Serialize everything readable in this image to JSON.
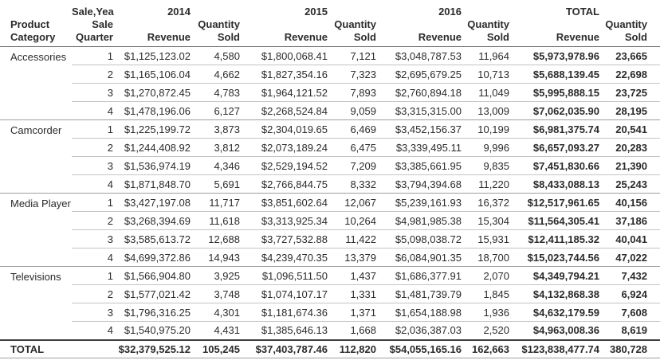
{
  "colors": {
    "text": "#2b2b2b",
    "background": "#ffffff",
    "header_line": "#757575",
    "row_line": "#c4c4c4",
    "group_line": "#9e9e9e",
    "total_line": "#3f3f3f"
  },
  "chart_data": {
    "type": "table",
    "row_dimension_label": [
      "Product",
      "Category"
    ],
    "column_dimension_label": [
      "Sale,Year",
      "Sale",
      "Quarter"
    ],
    "year_groups": [
      "2014",
      "2015",
      "2016",
      "TOTAL"
    ],
    "measure_labels": {
      "revenue": "Revenue",
      "quantity": [
        "Quantity",
        "Sold"
      ]
    },
    "header": {
      "cells": [
        {
          "lines": [
            "",
            "Product",
            "Category"
          ]
        },
        {
          "lines": [
            "Sale,Year",
            "Sale",
            "Quarter"
          ]
        },
        {
          "lines": [
            "2014",
            "",
            "Revenue"
          ]
        },
        {
          "lines": [
            "",
            "Quantity",
            "Sold"
          ]
        },
        {
          "lines": [
            "2015",
            "",
            "Revenue"
          ]
        },
        {
          "lines": [
            "",
            "Quantity",
            "Sold"
          ]
        },
        {
          "lines": [
            "2016",
            "",
            "Revenue"
          ]
        },
        {
          "lines": [
            "",
            "Quantity",
            "Sold"
          ]
        },
        {
          "lines": [
            "TOTAL",
            "",
            "Revenue"
          ]
        },
        {
          "lines": [
            "",
            "Quantity",
            "Sold"
          ]
        }
      ]
    },
    "groups": [
      {
        "category": "Accessories",
        "rows": [
          [
            "1",
            "$1,125,123.02",
            "4,580",
            "$1,800,068.41",
            "7,121",
            "$3,048,787.53",
            "11,964",
            "$5,973,978.96",
            "23,665"
          ],
          [
            "2",
            "$1,165,106.04",
            "4,662",
            "$1,827,354.16",
            "7,323",
            "$2,695,679.25",
            "10,713",
            "$5,688,139.45",
            "22,698"
          ],
          [
            "3",
            "$1,270,872.45",
            "4,783",
            "$1,964,121.52",
            "7,893",
            "$2,760,894.18",
            "11,049",
            "$5,995,888.15",
            "23,725"
          ],
          [
            "4",
            "$1,478,196.06",
            "6,127",
            "$2,268,524.84",
            "9,059",
            "$3,315,315.00",
            "13,009",
            "$7,062,035.90",
            "28,195"
          ]
        ]
      },
      {
        "category": "Camcorder",
        "rows": [
          [
            "1",
            "$1,225,199.72",
            "3,873",
            "$2,304,019.65",
            "6,469",
            "$3,452,156.37",
            "10,199",
            "$6,981,375.74",
            "20,541"
          ],
          [
            "2",
            "$1,244,408.92",
            "3,812",
            "$2,073,189.24",
            "6,475",
            "$3,339,495.11",
            "9,996",
            "$6,657,093.27",
            "20,283"
          ],
          [
            "3",
            "$1,536,974.19",
            "4,346",
            "$2,529,194.52",
            "7,209",
            "$3,385,661.95",
            "9,835",
            "$7,451,830.66",
            "21,390"
          ],
          [
            "4",
            "$1,871,848.70",
            "5,691",
            "$2,766,844.75",
            "8,332",
            "$3,794,394.68",
            "11,220",
            "$8,433,088.13",
            "25,243"
          ]
        ]
      },
      {
        "category": "Media Player",
        "rows": [
          [
            "1",
            "$3,427,197.08",
            "11,717",
            "$3,851,602.64",
            "12,067",
            "$5,239,161.93",
            "16,372",
            "$12,517,961.65",
            "40,156"
          ],
          [
            "2",
            "$3,268,394.69",
            "11,618",
            "$3,313,925.34",
            "10,264",
            "$4,981,985.38",
            "15,304",
            "$11,564,305.41",
            "37,186"
          ],
          [
            "3",
            "$3,585,613.72",
            "12,688",
            "$3,727,532.88",
            "11,422",
            "$5,098,038.72",
            "15,931",
            "$12,411,185.32",
            "40,041"
          ],
          [
            "4",
            "$4,699,372.86",
            "14,943",
            "$4,239,470.35",
            "13,379",
            "$6,084,901.35",
            "18,700",
            "$15,023,744.56",
            "47,022"
          ]
        ]
      },
      {
        "category": "Televisions",
        "rows": [
          [
            "1",
            "$1,566,904.80",
            "3,925",
            "$1,096,511.50",
            "1,437",
            "$1,686,377.91",
            "2,070",
            "$4,349,794.21",
            "7,432"
          ],
          [
            "2",
            "$1,577,021.42",
            "3,748",
            "$1,074,107.17",
            "1,331",
            "$1,481,739.79",
            "1,845",
            "$4,132,868.38",
            "6,924"
          ],
          [
            "3",
            "$1,796,316.25",
            "4,301",
            "$1,181,674.36",
            "1,371",
            "$1,654,188.98",
            "1,936",
            "$4,632,179.59",
            "7,608"
          ],
          [
            "4",
            "$1,540,975.20",
            "4,431",
            "$1,385,646.13",
            "1,668",
            "$2,036,387.03",
            "2,520",
            "$4,963,008.36",
            "8,619"
          ]
        ]
      }
    ],
    "total_row": {
      "label": "TOTAL",
      "cells": [
        "$32,379,525.12",
        "105,245",
        "$37,403,787.46",
        "112,820",
        "$54,055,165.16",
        "162,663",
        "$123,838,477.74",
        "380,728"
      ]
    }
  }
}
